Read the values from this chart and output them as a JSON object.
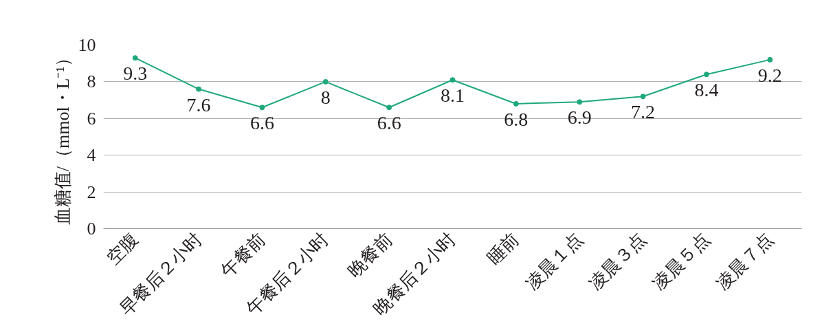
{
  "chart_data": {
    "type": "line",
    "ylabel": "血糖值/（mmol・L⁻¹）",
    "categories": [
      "空腹",
      "早餐后２小时",
      "午餐前",
      "午餐后２小时",
      "晚餐前",
      "晚餐后２小时",
      "睡前",
      "凌晨１点",
      "凌晨３点",
      "凌晨５点",
      "凌晨７点"
    ],
    "values": [
      9.3,
      7.6,
      6.6,
      8,
      6.6,
      8.1,
      6.8,
      6.9,
      7.2,
      8.4,
      9.2
    ],
    "color": "#1fa978",
    "ylim": [
      0,
      10
    ],
    "yticks": [
      0,
      2,
      4,
      6,
      8,
      10
    ],
    "grid": "y",
    "marker": "circle",
    "data_labels": true
  }
}
